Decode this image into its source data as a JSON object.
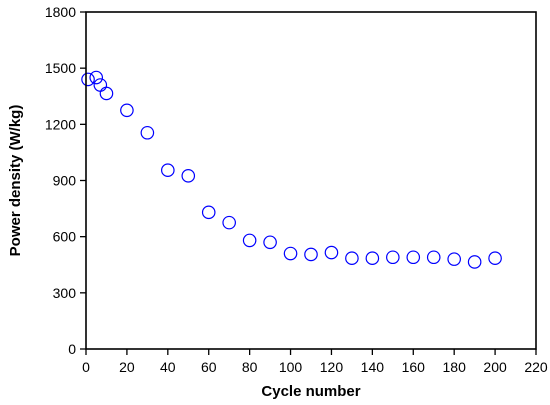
{
  "chart_data": {
    "type": "scatter",
    "xlabel": "Cycle number",
    "ylabel": "Power density (W/kg)",
    "xlim": [
      0,
      220
    ],
    "ylim": [
      0,
      1800
    ],
    "xticks": [
      0,
      20,
      40,
      60,
      80,
      100,
      120,
      140,
      160,
      180,
      200,
      220
    ],
    "yticks": [
      0,
      300,
      600,
      900,
      1200,
      1500,
      1800
    ],
    "grid": false,
    "marker": "open-circle",
    "marker_color": "#0000ff",
    "series": [
      {
        "x": [
          1,
          5,
          7,
          10,
          20,
          30,
          40,
          50,
          60,
          70,
          80,
          90,
          100,
          110,
          120,
          130,
          140,
          150,
          160,
          170,
          180,
          190,
          200
        ],
        "y": [
          1440,
          1450,
          1410,
          1365,
          1275,
          1155,
          955,
          925,
          730,
          675,
          580,
          570,
          510,
          505,
          515,
          485,
          485,
          490,
          490,
          490,
          480,
          465,
          485
        ]
      }
    ]
  }
}
